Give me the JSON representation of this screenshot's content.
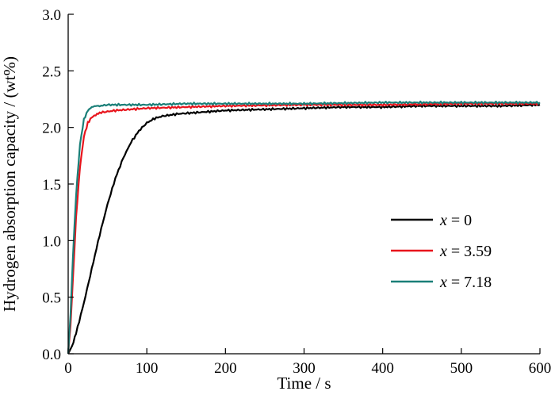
{
  "chart_data": {
    "type": "line",
    "xlabel": "Time / s",
    "ylabel": "Hydrogen absorption capacity / (wt%)",
    "xlim": [
      0,
      600
    ],
    "ylim": [
      0,
      3.0
    ],
    "xticks": [
      "0",
      "100",
      "200",
      "300",
      "400",
      "500",
      "600"
    ],
    "yticks": [
      "0.0",
      "0.5",
      "1.0",
      "1.5",
      "2.0",
      "2.5",
      "3.0"
    ],
    "grid": false,
    "legend_position": "center-right",
    "series": [
      {
        "name": "x = 0",
        "legend_var": "x",
        "legend_rest": " = 0",
        "color": "#000000",
        "x": [
          0,
          5,
          10,
          20,
          30,
          40,
          50,
          60,
          70,
          80,
          90,
          100,
          110,
          120,
          140,
          160,
          180,
          200,
          250,
          300,
          350,
          400,
          450,
          500,
          550,
          600
        ],
        "y": [
          0.0,
          0.07,
          0.18,
          0.45,
          0.75,
          1.05,
          1.32,
          1.55,
          1.73,
          1.87,
          1.97,
          2.04,
          2.08,
          2.1,
          2.12,
          2.13,
          2.14,
          2.15,
          2.16,
          2.17,
          2.18,
          2.18,
          2.19,
          2.19,
          2.19,
          2.2
        ]
      },
      {
        "name": "x = 3.59",
        "legend_var": "x",
        "legend_rest": " = 3.59",
        "color": "#e8141c",
        "x": [
          0,
          3,
          6,
          10,
          15,
          20,
          25,
          30,
          35,
          40,
          50,
          60,
          80,
          100,
          150,
          200,
          300,
          400,
          500,
          600
        ],
        "y": [
          0.0,
          0.25,
          0.65,
          1.2,
          1.65,
          1.92,
          2.04,
          2.09,
          2.11,
          2.13,
          2.14,
          2.15,
          2.16,
          2.17,
          2.18,
          2.19,
          2.2,
          2.2,
          2.21,
          2.21
        ]
      },
      {
        "name": "x = 7.18",
        "legend_var": "x",
        "legend_rest": " = 7.18",
        "color": "#1a7f78",
        "x": [
          0,
          3,
          6,
          10,
          15,
          20,
          25,
          30,
          35,
          40,
          50,
          60,
          80,
          100,
          150,
          200,
          300,
          400,
          500,
          600
        ],
        "y": [
          0.0,
          0.35,
          0.85,
          1.4,
          1.85,
          2.07,
          2.15,
          2.18,
          2.19,
          2.19,
          2.2,
          2.2,
          2.2,
          2.2,
          2.21,
          2.21,
          2.21,
          2.22,
          2.22,
          2.22
        ]
      }
    ]
  }
}
